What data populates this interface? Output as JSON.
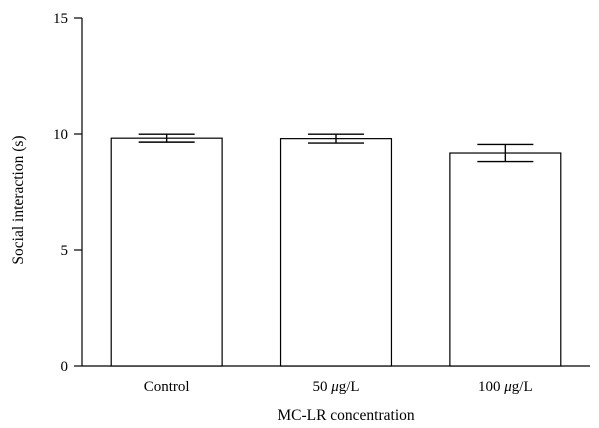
{
  "chart_data": {
    "type": "bar",
    "title": "",
    "xlabel": "MC-LR concentration",
    "ylabel": "Social interaction (s)",
    "categories": [
      "Control",
      "50 μg/L",
      "100 μg/L"
    ],
    "category_parts": [
      {
        "prefix": "Control",
        "italic": "",
        "suffix": ""
      },
      {
        "prefix": "50 ",
        "italic": "μ",
        "suffix": "g/L"
      },
      {
        "prefix": "100 ",
        "italic": "μ",
        "suffix": "g/L"
      }
    ],
    "values": [
      9.82,
      9.8,
      9.18
    ],
    "errors": [
      0.17,
      0.19,
      0.37
    ],
    "ylim": [
      0,
      15
    ],
    "yticks": [
      0,
      5,
      10,
      15
    ],
    "grid": false,
    "bar_fill": "#ffffff",
    "bar_stroke": "#000000"
  }
}
